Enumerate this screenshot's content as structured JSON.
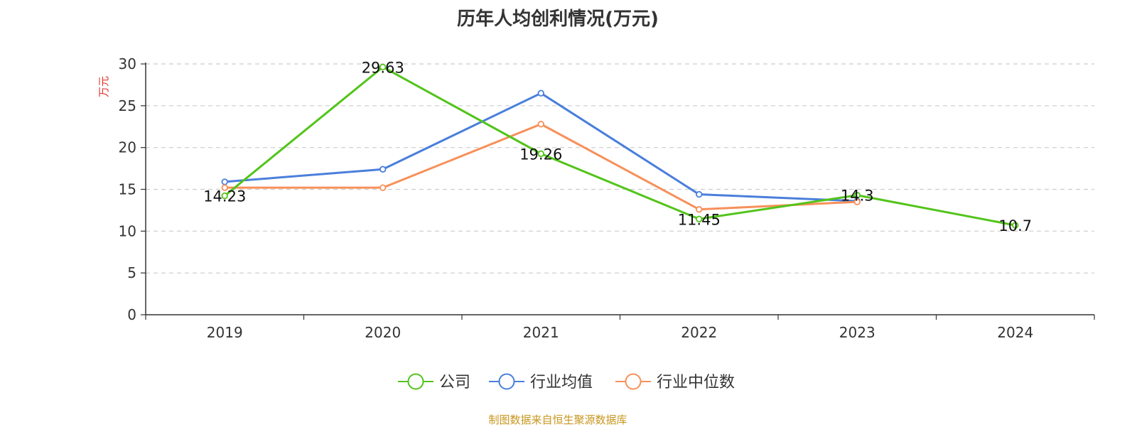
{
  "chart_data": {
    "type": "line",
    "title": "历年人均创利情况(万元)",
    "ylabel": "万元",
    "categories": [
      "2019",
      "2020",
      "2021",
      "2022",
      "2023",
      "2024"
    ],
    "ylim": [
      0,
      30
    ],
    "yticks": [
      0,
      5,
      10,
      15,
      20,
      25,
      30
    ],
    "grid": true,
    "legend_position": "bottom",
    "series": [
      {
        "name": "公司",
        "color": "#52c41a",
        "values": [
          14.23,
          29.63,
          19.26,
          11.45,
          14.3,
          10.7
        ],
        "labels": [
          "14.23",
          "29.63",
          "19.26",
          "11.45",
          "14.3",
          "10.7"
        ]
      },
      {
        "name": "行业均值",
        "color": "#4a7fdb",
        "values": [
          15.9,
          17.4,
          26.5,
          14.4,
          13.6,
          null
        ]
      },
      {
        "name": "行业中位数",
        "color": "#f7905a",
        "values": [
          15.2,
          15.2,
          22.8,
          12.6,
          13.5,
          null
        ]
      }
    ]
  },
  "source": "制图数据来自恒生聚源数据库"
}
